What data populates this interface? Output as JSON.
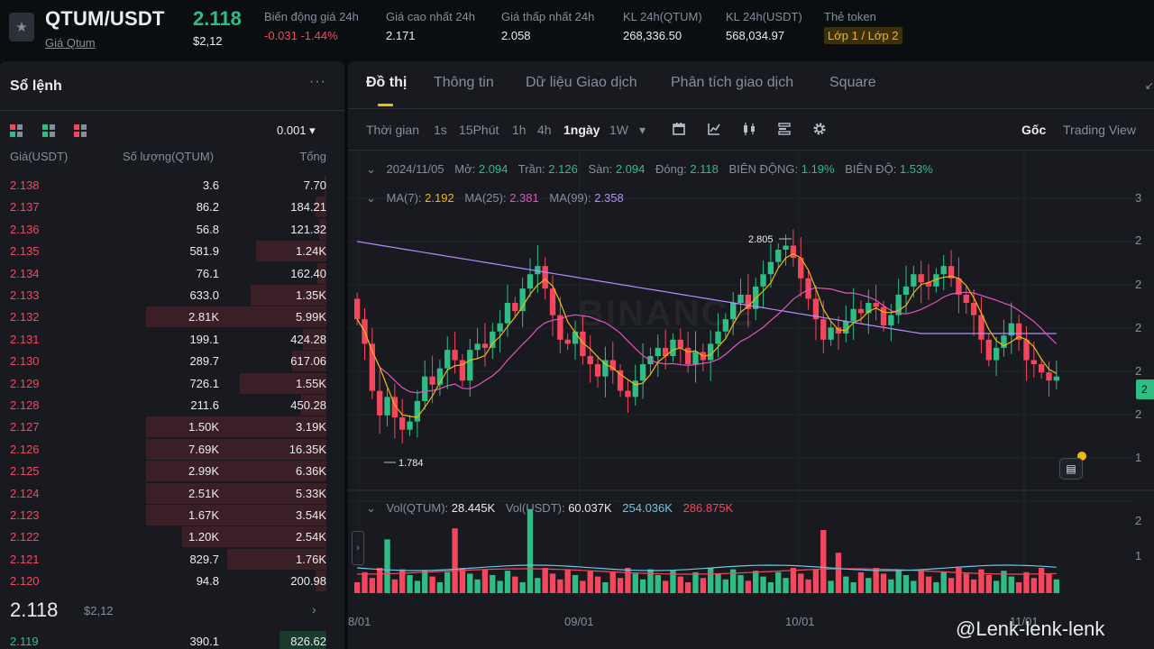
{
  "header": {
    "pair": "QTUM/USDT",
    "pair_link": "Giá Qtum",
    "last_price": "2.118",
    "last_price_usd": "$2,12",
    "stats": [
      {
        "label": "Biến động giá 24h",
        "value": "-0.031 -1.44%"
      },
      {
        "label": "Giá cao nhất 24h",
        "value": "2.171"
      },
      {
        "label": "Giá thấp nhất 24h",
        "value": "2.058"
      },
      {
        "label": "KL 24h(QTUM)",
        "value": "268,336.50"
      },
      {
        "label": "KL 24h(USDT)",
        "value": "568,034.97"
      },
      {
        "label": "Thẻ token",
        "value": "Lớp 1 / Lớp 2"
      }
    ]
  },
  "orderbook": {
    "title": "Sổ lệnh",
    "more": "···",
    "precision": "0.001 ▾",
    "headers": {
      "price": "Giá(USDT)",
      "qty": "Số lượng(QTUM)",
      "total": "Tổng"
    },
    "asks": [
      {
        "price": "2.138",
        "qty": "3.6",
        "total": "7.70",
        "depth": 0.01
      },
      {
        "price": "2.137",
        "qty": "86.2",
        "total": "184.21",
        "depth": 0.06
      },
      {
        "price": "2.136",
        "qty": "56.8",
        "total": "121.32",
        "depth": 0.04
      },
      {
        "price": "2.135",
        "qty": "581.9",
        "total": "1.24K",
        "depth": 0.39
      },
      {
        "price": "2.134",
        "qty": "76.1",
        "total": "162.40",
        "depth": 0.05
      },
      {
        "price": "2.133",
        "qty": "633.0",
        "total": "1.35K",
        "depth": 0.42
      },
      {
        "price": "2.132",
        "qty": "2.81K",
        "total": "5.99K",
        "depth": 1.0
      },
      {
        "price": "2.131",
        "qty": "199.1",
        "total": "424.28",
        "depth": 0.13
      },
      {
        "price": "2.130",
        "qty": "289.7",
        "total": "617.06",
        "depth": 0.19
      },
      {
        "price": "2.129",
        "qty": "726.1",
        "total": "1.55K",
        "depth": 0.48
      },
      {
        "price": "2.128",
        "qty": "211.6",
        "total": "450.28",
        "depth": 0.14
      },
      {
        "price": "2.127",
        "qty": "1.50K",
        "total": "3.19K",
        "depth": 1.0
      },
      {
        "price": "2.126",
        "qty": "7.69K",
        "total": "16.35K",
        "depth": 1.0
      },
      {
        "price": "2.125",
        "qty": "2.99K",
        "total": "6.36K",
        "depth": 1.0
      },
      {
        "price": "2.124",
        "qty": "2.51K",
        "total": "5.33K",
        "depth": 1.0
      },
      {
        "price": "2.123",
        "qty": "1.67K",
        "total": "3.54K",
        "depth": 1.0
      },
      {
        "price": "2.122",
        "qty": "1.20K",
        "total": "2.54K",
        "depth": 0.8
      },
      {
        "price": "2.121",
        "qty": "829.7",
        "total": "1.76K",
        "depth": 0.55
      },
      {
        "price": "2.120",
        "qty": "94.8",
        "total": "200.98",
        "depth": 0.06
      }
    ],
    "mid_price": "2.118",
    "mid_usd": "$2,12",
    "mid_arrow": "›",
    "bids": [
      {
        "price": "2.119",
        "qty": "390.1",
        "total": "826.62",
        "depth": 0.26
      }
    ]
  },
  "chart_panel": {
    "tabs": [
      "Đồ thị",
      "Thông tin",
      "Dữ liệu Giao dịch",
      "Phân tích giao dịch",
      "Square"
    ],
    "active_tab": 0,
    "corner_icon": "↙",
    "toolbar": {
      "time_label": "Thời gian",
      "intervals": [
        "1s",
        "15Phút",
        "1h",
        "4h",
        "1ngày",
        "1W"
      ],
      "active_interval": "1ngày",
      "dropdown": "▾",
      "icons": [
        "calendar-icon",
        "indicator-icon",
        "candle-type-icon",
        "layout-icon",
        "settings-icon"
      ],
      "view_original": "Gốc",
      "view_tradingview": "Trading View"
    },
    "ohlc": {
      "date": "2024/11/05",
      "open_label": "Mở:",
      "open": "2.094",
      "high_label": "Trần:",
      "high": "2.126",
      "low_label": "Sàn:",
      "low": "2.094",
      "close_label": "Đóng:",
      "close": "2.118",
      "change_label": "BIÊN ĐỘNG:",
      "change": "1.19%",
      "amplitude_label": "BIÊN ĐỘ:",
      "amplitude": "1.53%"
    },
    "ma": {
      "ma7_label": "MA(7):",
      "ma7": "2.192",
      "ma25_label": "MA(25):",
      "ma25": "2.381",
      "ma99_label": "MA(99):",
      "ma99": "2.358"
    },
    "volume": {
      "qtum_label": "Vol(QTUM):",
      "qtum": "28.445K",
      "usdt_label": "Vol(USDT):",
      "usdt": "60.037K",
      "ma1": "254.036K",
      "ma2": "286.875K"
    },
    "annotations": {
      "high": "2.805",
      "low": "1.784"
    },
    "right_axis": [
      "3",
      "2",
      "2",
      "2",
      "2",
      "2",
      "1"
    ],
    "volume_axis": [
      "2",
      "1"
    ],
    "price_tag": "2",
    "x_labels": [
      "8/01",
      "09/01",
      "10/01",
      "11/01"
    ],
    "watermark": "BINANCE",
    "colors": {
      "up": "#2ebd85",
      "down": "#f6465d",
      "ma7": "#f0b90b",
      "ma25": "#e354c0",
      "ma99": "#b68cff",
      "vol_ma1": "#6ac7e5",
      "vol_ma2": "#f6465d"
    }
  },
  "author_watermark": "@Lenk-lenk-lenk",
  "chart_data": {
    "type": "candlestick",
    "interval": "1ngày",
    "x_labels": [
      "8/01",
      "09/01",
      "10/01",
      "11/01"
    ],
    "high_marker": 2.805,
    "low_marker": 1.784,
    "last_candle": {
      "date": "2024/11/05",
      "open": 2.094,
      "high": 2.126,
      "low": 2.094,
      "close": 2.118
    },
    "closes": [
      2.4,
      2.28,
      2.05,
      1.93,
      2.02,
      1.92,
      1.86,
      1.9,
      2.0,
      2.12,
      2.08,
      2.16,
      2.25,
      2.2,
      2.1,
      2.25,
      2.28,
      2.26,
      2.34,
      2.38,
      2.48,
      2.44,
      2.55,
      2.62,
      2.66,
      2.55,
      2.42,
      2.3,
      2.28,
      2.34,
      2.22,
      2.18,
      2.12,
      2.2,
      2.15,
      2.05,
      2.02,
      2.1,
      2.18,
      2.22,
      2.26,
      2.22,
      2.3,
      2.26,
      2.18,
      2.24,
      2.2,
      2.28,
      2.34,
      2.4,
      2.48,
      2.52,
      2.45,
      2.56,
      2.62,
      2.68,
      2.74,
      2.76,
      2.7,
      2.6,
      2.5,
      2.4,
      2.3,
      2.36,
      2.33,
      2.39,
      2.45,
      2.43,
      2.48,
      2.46,
      2.37,
      2.42,
      2.52,
      2.56,
      2.62,
      2.58,
      2.56,
      2.62,
      2.66,
      2.6,
      2.52,
      2.48,
      2.42,
      2.3,
      2.2,
      2.26,
      2.32,
      2.38,
      2.3,
      2.2,
      2.18,
      2.14,
      2.1,
      2.12
    ],
    "ma7_last": 2.192,
    "ma25_last": 2.381,
    "ma99_last": 2.358,
    "volume_last_qtum": 28445,
    "volume_last_usdt": 60037
  }
}
